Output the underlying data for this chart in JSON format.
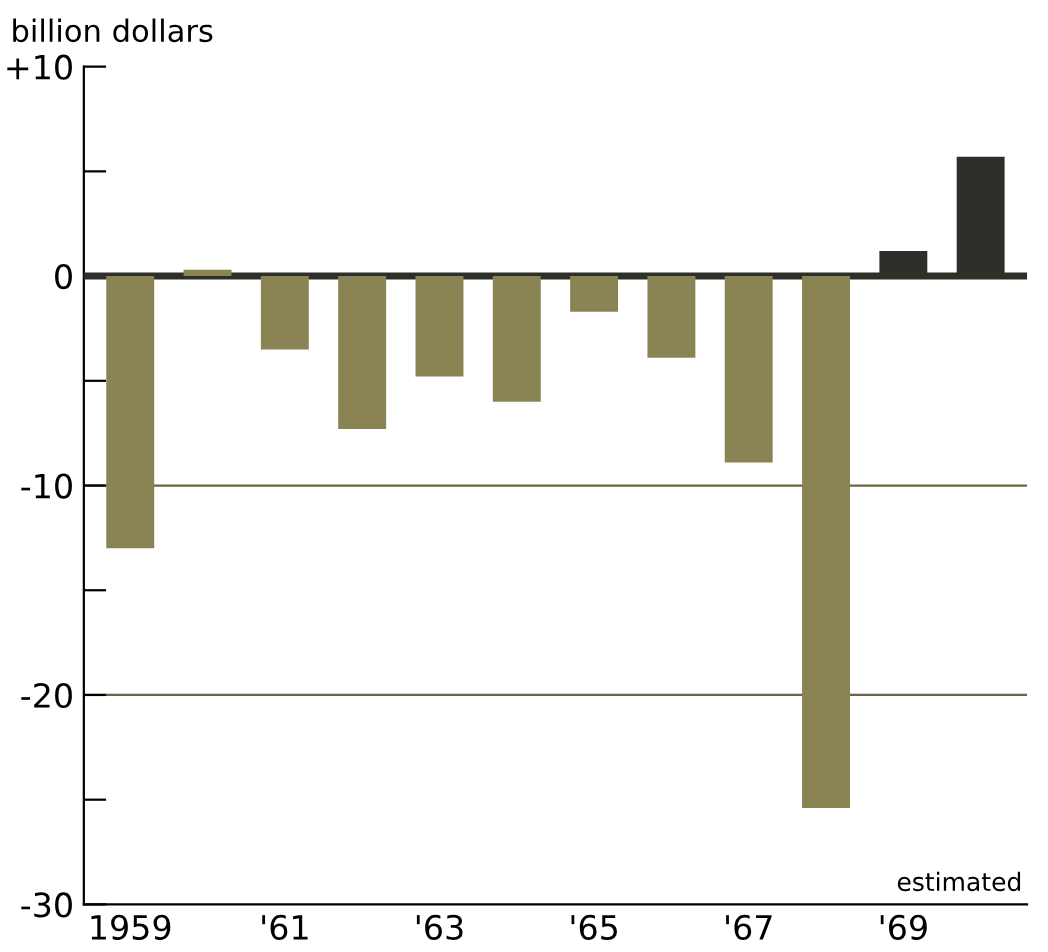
{
  "chart_data": {
    "type": "bar",
    "ylabel": "billion dollars",
    "categories": [
      "1959",
      null,
      "'61",
      null,
      "'63",
      null,
      "'65",
      null,
      "'67",
      null,
      "'69",
      null
    ],
    "values": [
      -13.0,
      0.3,
      -3.5,
      -7.3,
      -4.8,
      -6.0,
      -1.7,
      -3.9,
      -8.9,
      -25.4,
      1.2,
      5.7
    ],
    "colors": [
      "#8a8455",
      "#8a8455",
      "#8a8455",
      "#8a8455",
      "#8a8455",
      "#8a8455",
      "#8a8455",
      "#8a8455",
      "#8a8455",
      "#8a8455",
      "#2f2f2a",
      "#2f2f2a"
    ],
    "ylim": [
      -30,
      10
    ],
    "yticks": [
      {
        "value": 10,
        "label": "+10"
      },
      {
        "value": 5,
        "label": null
      },
      0,
      {
        "value": -5,
        "label": null
      },
      -10,
      {
        "value": -15,
        "label": null
      },
      -20,
      {
        "value": -25,
        "label": null
      },
      -30
    ],
    "ref_lines": [
      {
        "axis": "y",
        "value": 0,
        "color": "#2f2f2a"
      },
      {
        "axis": "y",
        "value": -10,
        "color": "#6b6740"
      },
      {
        "axis": "y",
        "value": -20,
        "color": "#6b6740"
      }
    ],
    "annotations": [
      "estimated"
    ],
    "grid": false,
    "legend": false
  }
}
